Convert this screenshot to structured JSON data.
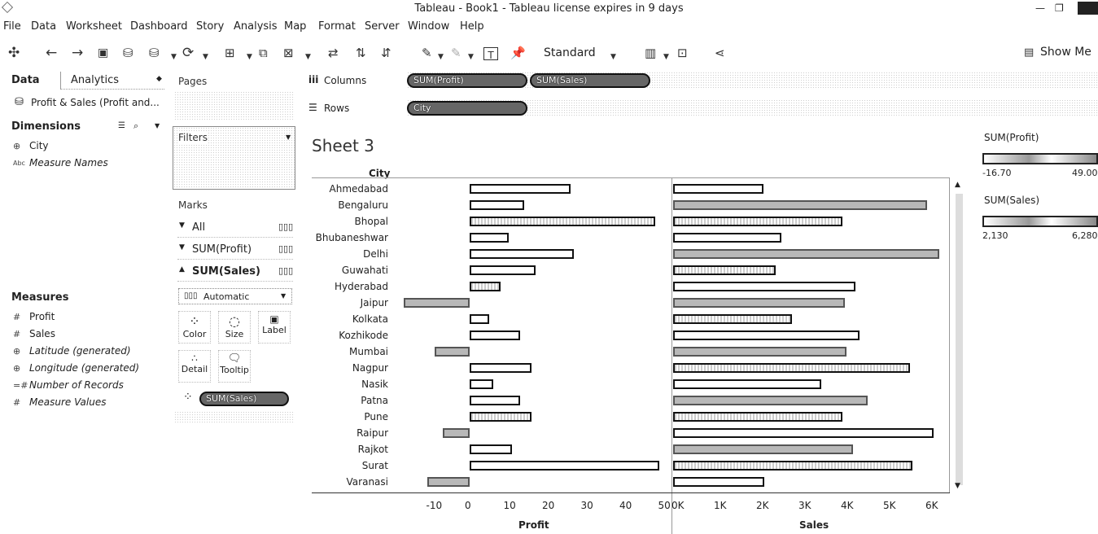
{
  "window": {
    "title": "Tableau - Book1 - Tableau license expires in 9 days"
  },
  "menu": [
    "File",
    "Data",
    "Worksheet",
    "Dashboard",
    "Story",
    "Analysis",
    "Map",
    "Format",
    "Server",
    "Window",
    "Help"
  ],
  "toolbar": {
    "view_size": "Standard",
    "show_me": "Show Me"
  },
  "data_pane": {
    "tab_data": "Data",
    "tab_analytics": "Analytics",
    "datasource": "Profit & Sales (Profit and...",
    "dimensions_header": "Dimensions",
    "dimensions": [
      {
        "label": "City",
        "icon": "globe-icon"
      },
      {
        "label": "Measure Names",
        "icon": "abc-icon"
      }
    ],
    "measures_header": "Measures",
    "measures": [
      {
        "label": "Profit",
        "icon": "hash-icon"
      },
      {
        "label": "Sales",
        "icon": "hash-icon"
      },
      {
        "label": "Latitude (generated)",
        "icon": "globe-icon"
      },
      {
        "label": "Longitude (generated)",
        "icon": "globe-icon"
      },
      {
        "label": "Number of Records",
        "icon": "hash-icon"
      },
      {
        "label": "Measure Values",
        "icon": "hash-icon"
      }
    ]
  },
  "cards": {
    "pages": "Pages",
    "filters": "Filters",
    "marks": "Marks",
    "marks_all": "All",
    "marks_profit": "SUM(Profit)",
    "marks_sales": "SUM(Sales)",
    "mark_type": "Automatic",
    "buttons": [
      "Color",
      "Size",
      "Label",
      "Detail",
      "Tooltip"
    ],
    "color_pill": "SUM(Sales)"
  },
  "shelves": {
    "columns_label": "Columns",
    "rows_label": "Rows",
    "columns_pills": [
      "SUM(Profit)",
      "SUM(Sales)"
    ],
    "rows_pill": "City"
  },
  "sheet": {
    "title": "Sheet 3",
    "row_header": "City"
  },
  "legends": {
    "profit_title": "SUM(Profit)",
    "profit_min": "-16.70",
    "profit_max": "49.00",
    "sales_title": "SUM(Sales)",
    "sales_min": "2,130",
    "sales_max": "6,280"
  },
  "chart_data": {
    "type": "bar",
    "categories": [
      "Ahmedabad",
      "Bengaluru",
      "Bhopal",
      "Bhubaneshwar",
      "Delhi",
      "Guwahati",
      "Hyderabad",
      "Jaipur",
      "Kolkata",
      "Kozhikode",
      "Mumbai",
      "Nagpur",
      "Nasik",
      "Patna",
      "Pune",
      "Raipur",
      "Rajkot",
      "Surat",
      "Varanasi"
    ],
    "series": [
      {
        "name": "Profit",
        "values": [
          26,
          14,
          48,
          10,
          27,
          17,
          8,
          -17,
          5,
          13,
          -9,
          16,
          6,
          13,
          16,
          -7,
          11,
          49,
          -11
        ],
        "xlim": [
          -17,
          50
        ],
        "ticks": [
          "-10",
          "0",
          "10",
          "20",
          "30",
          "40",
          "50"
        ]
      },
      {
        "name": "Sales",
        "values": [
          2130,
          6000,
          4000,
          2550,
          6280,
          2420,
          4300,
          4050,
          2800,
          4400,
          4100,
          5600,
          3500,
          4600,
          4000,
          6150,
          4250,
          5650,
          2150
        ],
        "xlim": [
          0,
          6500
        ],
        "ticks": [
          "0K",
          "1K",
          "2K",
          "3K",
          "4K",
          "5K",
          "6K"
        ]
      }
    ],
    "xlabel_profit": "Profit",
    "xlabel_sales": "Sales"
  }
}
